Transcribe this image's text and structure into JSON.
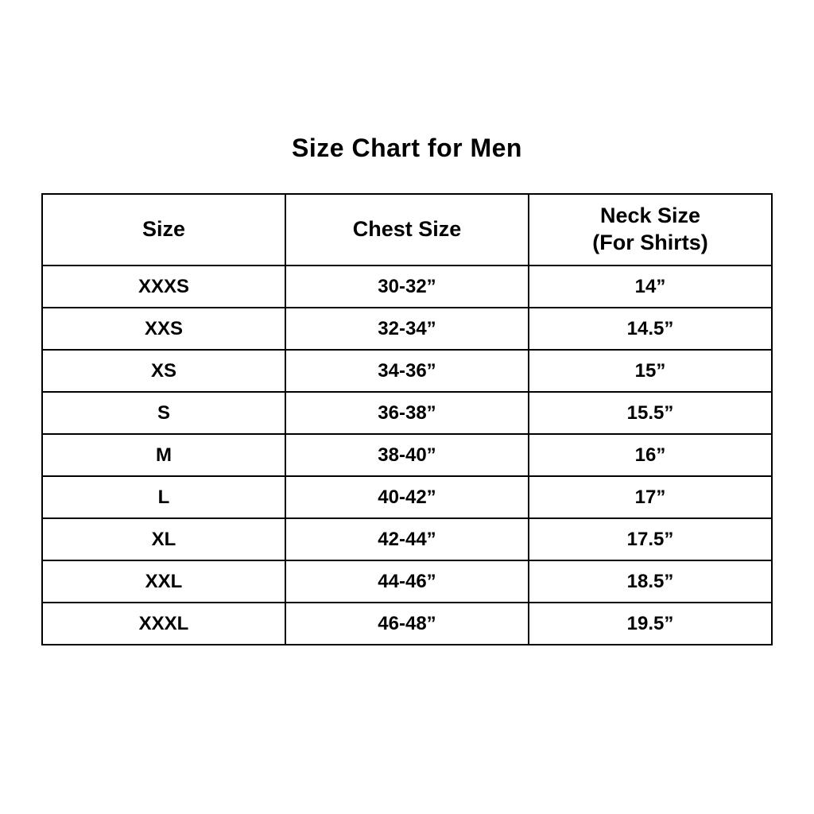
{
  "page": {
    "title": "Size Chart for Men"
  },
  "colors": {
    "background": "#ffffff",
    "text": "#000000",
    "border": "#000000"
  },
  "table": {
    "headers": {
      "size": "Size",
      "chest": "Chest Size",
      "neck_line1": "Neck Size",
      "neck_line2": "(For Shirts)"
    },
    "rows": [
      {
        "size": "XXXS",
        "chest": "30-32”",
        "neck": "14”"
      },
      {
        "size": "XXS",
        "chest": "32-34”",
        "neck": "14.5”"
      },
      {
        "size": "XS",
        "chest": "34-36”",
        "neck": "15”"
      },
      {
        "size": "S",
        "chest": "36-38”",
        "neck": "15.5”"
      },
      {
        "size": "M",
        "chest": "38-40”",
        "neck": "16”"
      },
      {
        "size": "L",
        "chest": "40-42”",
        "neck": "17”"
      },
      {
        "size": "XL",
        "chest": "42-44”",
        "neck": "17.5”"
      },
      {
        "size": "XXL",
        "chest": "44-46”",
        "neck": "18.5”"
      },
      {
        "size": "XXXL",
        "chest": "46-48”",
        "neck": "19.5”"
      }
    ]
  },
  "chart_data": {
    "type": "table",
    "title": "Size Chart for Men",
    "columns": [
      "Size",
      "Chest Size",
      "Neck Size (For Shirts)"
    ],
    "rows": [
      [
        "XXXS",
        "30-32”",
        "14”"
      ],
      [
        "XXS",
        "32-34”",
        "14.5”"
      ],
      [
        "XS",
        "34-36”",
        "15”"
      ],
      [
        "S",
        "36-38”",
        "15.5”"
      ],
      [
        "M",
        "38-40”",
        "16”"
      ],
      [
        "L",
        "40-42”",
        "17”"
      ],
      [
        "XL",
        "42-44”",
        "17.5”"
      ],
      [
        "XXL",
        "44-46”",
        "18.5”"
      ],
      [
        "XXXL",
        "46-48”",
        "19.5”"
      ]
    ],
    "layout": {
      "grid": true,
      "header_rows": 1,
      "text_align": "center",
      "font_weight": "bold"
    }
  }
}
